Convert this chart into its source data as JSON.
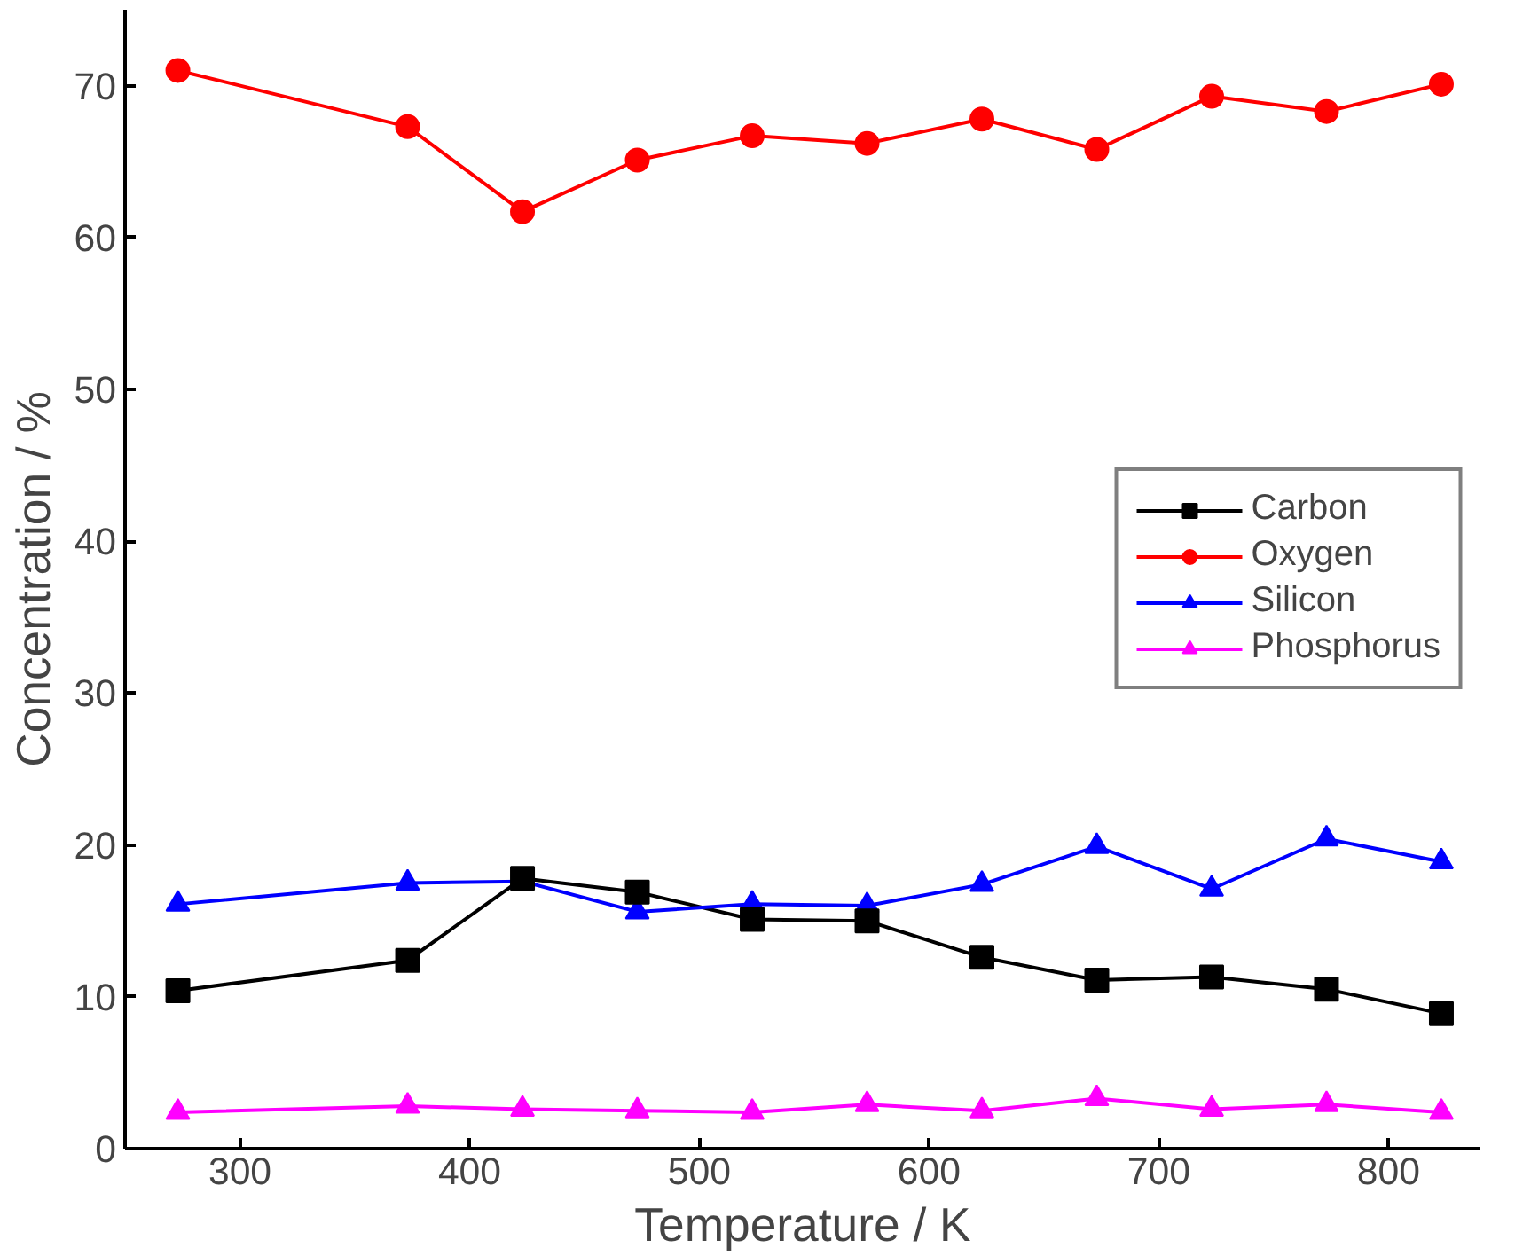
{
  "chart_data": {
    "type": "line",
    "xlabel": "Temperature / K",
    "ylabel": "Concentration / %",
    "x": [
      273,
      373,
      423,
      473,
      523,
      573,
      623,
      673,
      723,
      773,
      823
    ],
    "series": [
      {
        "name": "Carbon",
        "color": "#000000",
        "marker": "square",
        "values": [
          10.4,
          12.4,
          17.8,
          16.9,
          15.1,
          15.0,
          12.6,
          11.1,
          11.3,
          10.5,
          8.9
        ]
      },
      {
        "name": "Oxygen",
        "color": "#ff0000",
        "marker": "circle",
        "values": [
          71.0,
          67.3,
          61.7,
          65.1,
          66.7,
          66.2,
          67.8,
          65.8,
          69.3,
          68.3,
          70.1
        ]
      },
      {
        "name": "Silicon",
        "color": "#0000ff",
        "marker": "triangle",
        "values": [
          16.1,
          17.5,
          17.6,
          15.6,
          16.1,
          16.0,
          17.4,
          19.9,
          17.1,
          20.4,
          18.9
        ]
      },
      {
        "name": "Phosphorus",
        "color": "#ff00ff",
        "marker": "triangle",
        "values": [
          2.4,
          2.8,
          2.6,
          2.5,
          2.4,
          2.9,
          2.5,
          3.3,
          2.6,
          2.9,
          2.4
        ]
      }
    ],
    "xlim": [
      250,
      840
    ],
    "xticks": [
      300,
      400,
      500,
      600,
      700,
      800
    ],
    "ylim": [
      0,
      75
    ],
    "yticks": [
      0,
      10,
      20,
      30,
      40,
      50,
      60,
      70
    ],
    "grid": false,
    "legend": "right",
    "line_style": "solid"
  }
}
